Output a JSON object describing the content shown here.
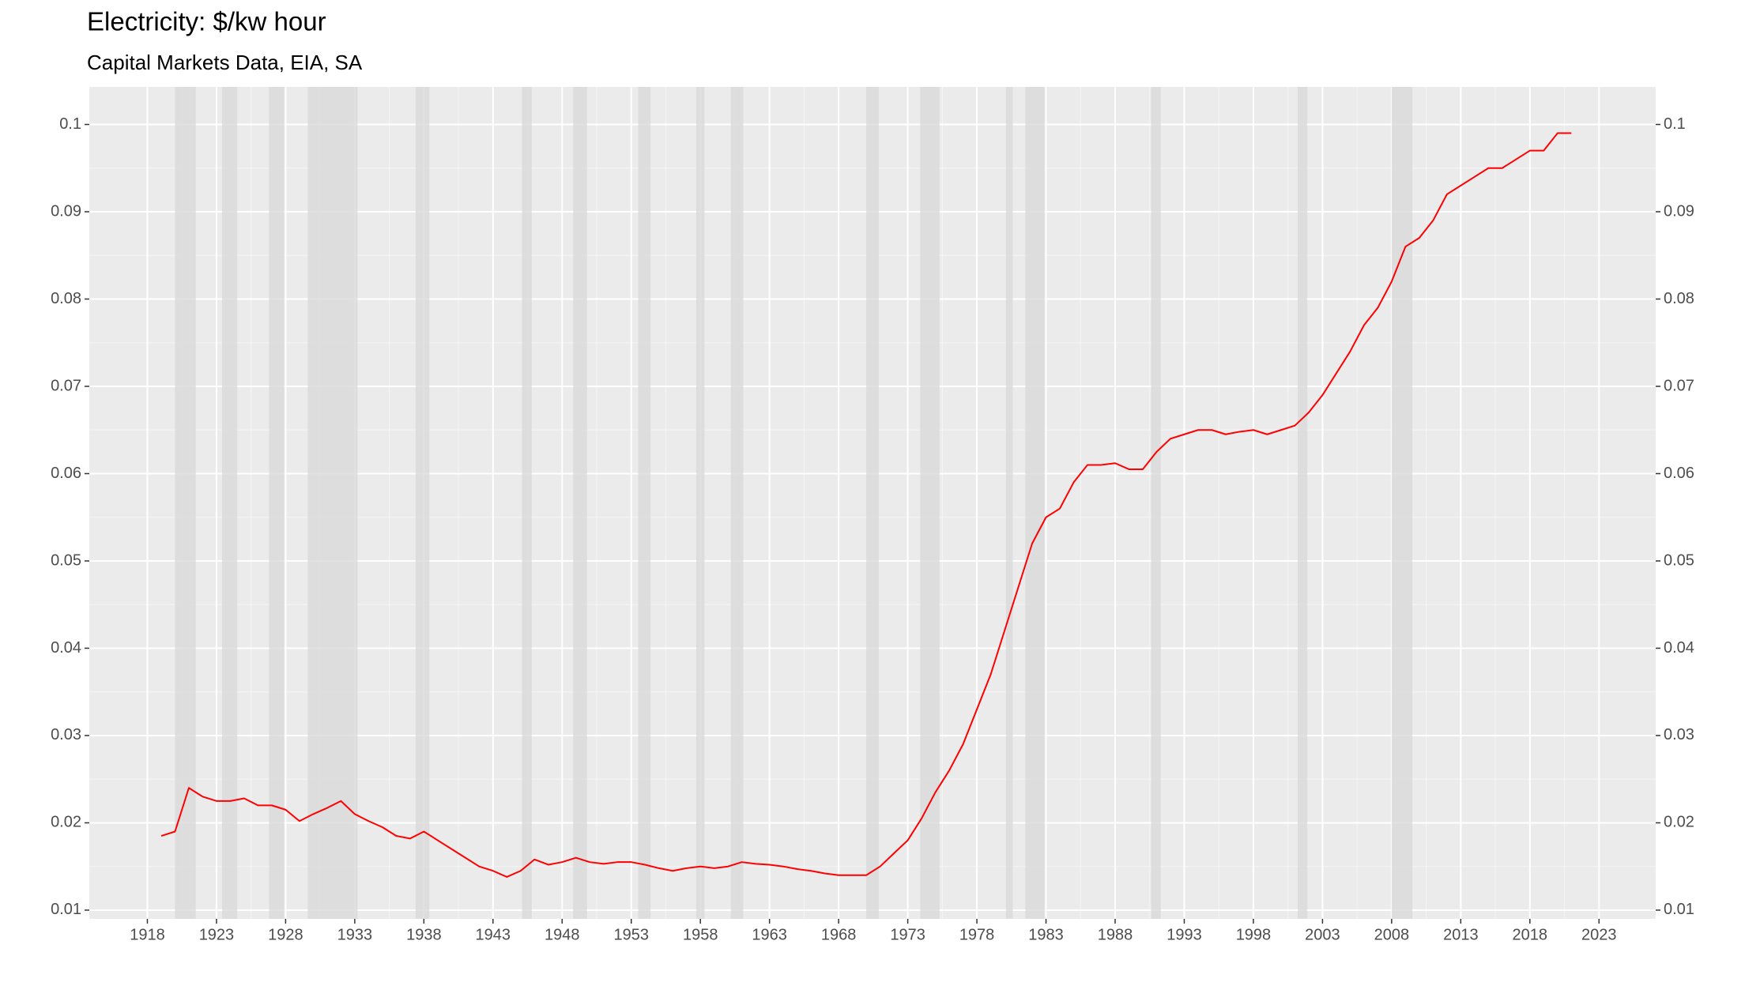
{
  "chart_data": {
    "type": "line",
    "title": "Electricity: $/kw hour",
    "subtitle": "Capital Markets Data, EIA, SA",
    "x": [
      1919,
      1920,
      1921,
      1922,
      1923,
      1924,
      1925,
      1926,
      1927,
      1928,
      1929,
      1930,
      1931,
      1932,
      1933,
      1934,
      1935,
      1936,
      1937,
      1938,
      1939,
      1940,
      1941,
      1942,
      1943,
      1944,
      1945,
      1946,
      1947,
      1948,
      1949,
      1950,
      1951,
      1952,
      1953,
      1954,
      1955,
      1956,
      1957,
      1958,
      1959,
      1960,
      1961,
      1962,
      1963,
      1964,
      1965,
      1966,
      1967,
      1968,
      1969,
      1970,
      1971,
      1972,
      1973,
      1974,
      1975,
      1976,
      1977,
      1978,
      1979,
      1980,
      1981,
      1982,
      1983,
      1984,
      1985,
      1986,
      1987,
      1988,
      1989,
      1990,
      1991,
      1992,
      1993,
      1994,
      1995,
      1996,
      1997,
      1998,
      1999,
      2000,
      2001,
      2002,
      2003,
      2004,
      2005,
      2006,
      2007,
      2008,
      2009,
      2010,
      2011,
      2012,
      2013,
      2014,
      2015,
      2016,
      2017,
      2018,
      2019,
      2020,
      2021
    ],
    "series": [
      {
        "name": "Electricity",
        "color": "#ff0000",
        "values": [
          0.0185,
          0.019,
          0.024,
          0.023,
          0.0225,
          0.0225,
          0.0228,
          0.022,
          0.022,
          0.0215,
          0.0202,
          0.021,
          0.0217,
          0.0225,
          0.021,
          0.0202,
          0.0195,
          0.0185,
          0.0182,
          0.019,
          0.018,
          0.017,
          0.016,
          0.015,
          0.0145,
          0.0138,
          0.0145,
          0.0158,
          0.0152,
          0.0155,
          0.016,
          0.0155,
          0.0153,
          0.0155,
          0.0155,
          0.0152,
          0.0148,
          0.0145,
          0.0148,
          0.015,
          0.0148,
          0.015,
          0.0155,
          0.0153,
          0.0152,
          0.015,
          0.0147,
          0.0145,
          0.0142,
          0.014,
          0.014,
          0.014,
          0.015,
          0.0165,
          0.018,
          0.0205,
          0.0235,
          0.026,
          0.029,
          0.033,
          0.037,
          0.042,
          0.047,
          0.052,
          0.055,
          0.056,
          0.059,
          0.061,
          0.061,
          0.0612,
          0.0605,
          0.0605,
          0.0625,
          0.064,
          0.0645,
          0.065,
          0.065,
          0.0645,
          0.0648,
          0.065,
          0.0645,
          0.065,
          0.0655,
          0.067,
          0.069,
          0.0715,
          0.074,
          0.077,
          0.079,
          0.082,
          0.086,
          0.087,
          0.089,
          0.092,
          0.093,
          0.094,
          0.095,
          0.095,
          0.096,
          0.097,
          0.097,
          0.099,
          0.099
        ]
      }
    ],
    "shaded_periods": [
      [
        1920.0,
        1921.5
      ],
      [
        1923.4,
        1924.5
      ],
      [
        1926.8,
        1927.9
      ],
      [
        1929.6,
        1933.2
      ],
      [
        1937.4,
        1938.4
      ],
      [
        1945.1,
        1945.8
      ],
      [
        1948.8,
        1949.8
      ],
      [
        1953.5,
        1954.4
      ],
      [
        1957.7,
        1958.3
      ],
      [
        1960.2,
        1961.1
      ],
      [
        1970.0,
        1970.9
      ],
      [
        1973.9,
        1975.3
      ],
      [
        1980.1,
        1980.6
      ],
      [
        1981.5,
        1982.9
      ],
      [
        1990.6,
        1991.3
      ],
      [
        2001.2,
        2001.9
      ],
      [
        2008.0,
        2009.5
      ]
    ],
    "shade_color": "#d9d9d9",
    "xlim": [
      1913.8,
      2027.1
    ],
    "xticks": [
      1918,
      1923,
      1928,
      1933,
      1938,
      1943,
      1948,
      1953,
      1958,
      1963,
      1968,
      1973,
      1978,
      1983,
      1988,
      1993,
      1998,
      2003,
      2008,
      2013,
      2018,
      2023
    ],
    "ylim": [
      0.009,
      0.1043
    ],
    "yticks": [
      0.01,
      0.02,
      0.03,
      0.04,
      0.05,
      0.06,
      0.07,
      0.08,
      0.09,
      0.1
    ],
    "y2lim": [
      0.009,
      0.1043
    ],
    "y2ticks": [
      0.01,
      0.02,
      0.03,
      0.04,
      0.05,
      0.06,
      0.07,
      0.08,
      0.09,
      0.1
    ],
    "grid": true
  }
}
